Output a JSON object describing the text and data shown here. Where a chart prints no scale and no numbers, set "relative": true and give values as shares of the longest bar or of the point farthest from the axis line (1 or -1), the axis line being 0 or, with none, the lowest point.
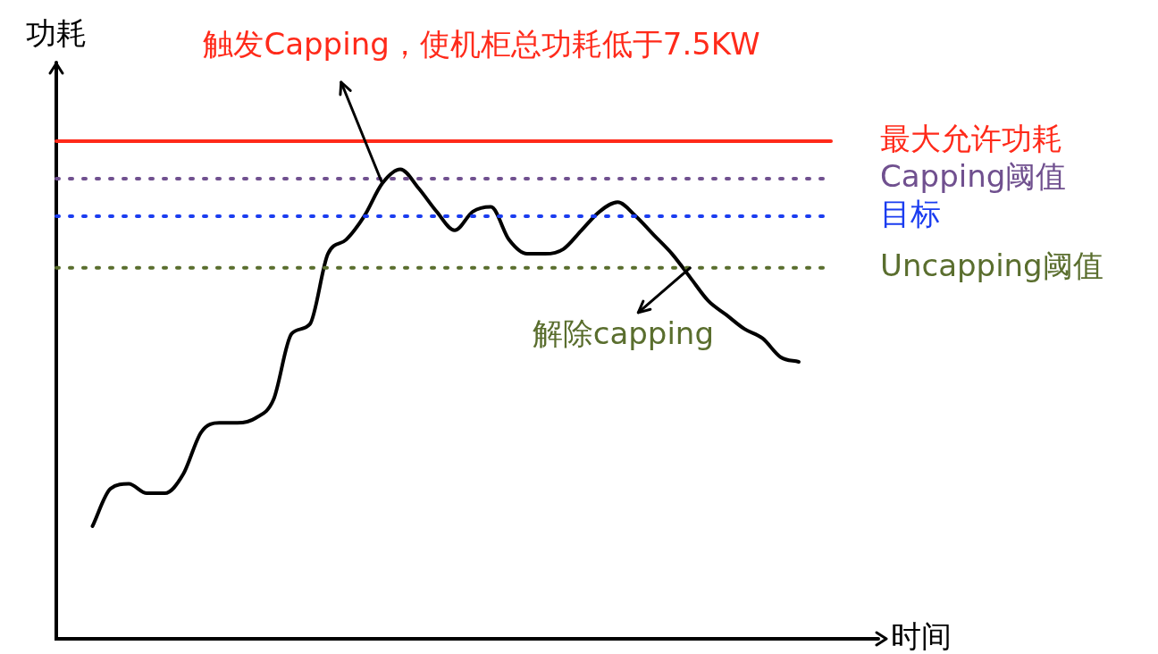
{
  "chart_data": {
    "type": "line",
    "relative": true,
    "xlabel": "时间",
    "ylabel": "功耗",
    "categories": [
      null,
      null,
      null,
      null,
      null,
      null,
      null,
      null,
      null,
      null,
      null,
      null,
      null,
      null,
      null,
      null,
      null,
      null,
      null,
      null,
      null,
      null,
      null,
      null,
      null,
      null,
      null,
      null,
      null,
      null,
      null,
      null,
      null,
      null,
      null,
      null,
      null,
      null,
      null,
      null,
      null,
      null,
      null,
      null,
      null,
      null
    ],
    "series": [
      {
        "color": "#000000",
        "values": [
          null,
          null,
          0.24,
          0.32,
          0.33,
          0.31,
          0.31,
          0.35,
          0.44,
          0.46,
          0.46,
          0.47,
          0.51,
          0.65,
          0.67,
          0.82,
          0.85,
          0.9,
          0.97,
          1,
          0.96,
          0.91,
          0.87,
          0.91,
          0.92,
          0.85,
          0.82,
          0.82,
          0.83,
          0.87,
          0.91,
          0.93,
          0.9,
          0.86,
          0.82,
          0.77,
          0.72,
          0.69,
          0.66,
          0.64,
          0.6,
          0.59,
          null,
          null,
          null,
          null
        ]
      }
    ],
    "ref_lines": [
      {
        "axis": "y",
        "value": 1.06,
        "label": "最大允许功耗",
        "color": "#ff2a1a",
        "line_style": "solid"
      },
      {
        "axis": "y",
        "value": 0.98,
        "label": "Capping阈值",
        "color": "#70508f",
        "line_style": "dotted"
      },
      {
        "axis": "y",
        "value": 0.9,
        "label": "目标",
        "color": "#1a3cf0",
        "line_style": "dotted"
      },
      {
        "axis": "y",
        "value": 0.79,
        "label": "Uncapping阈值",
        "color": "#5a6e2e",
        "line_style": "dotted"
      }
    ],
    "annotations": [
      "触发Capping，使机柜总功耗低于7.5KW",
      "解除capping"
    ],
    "grid": false,
    "legend": false,
    "tick_labels": false,
    "marker": "none",
    "line_style": "solid"
  }
}
